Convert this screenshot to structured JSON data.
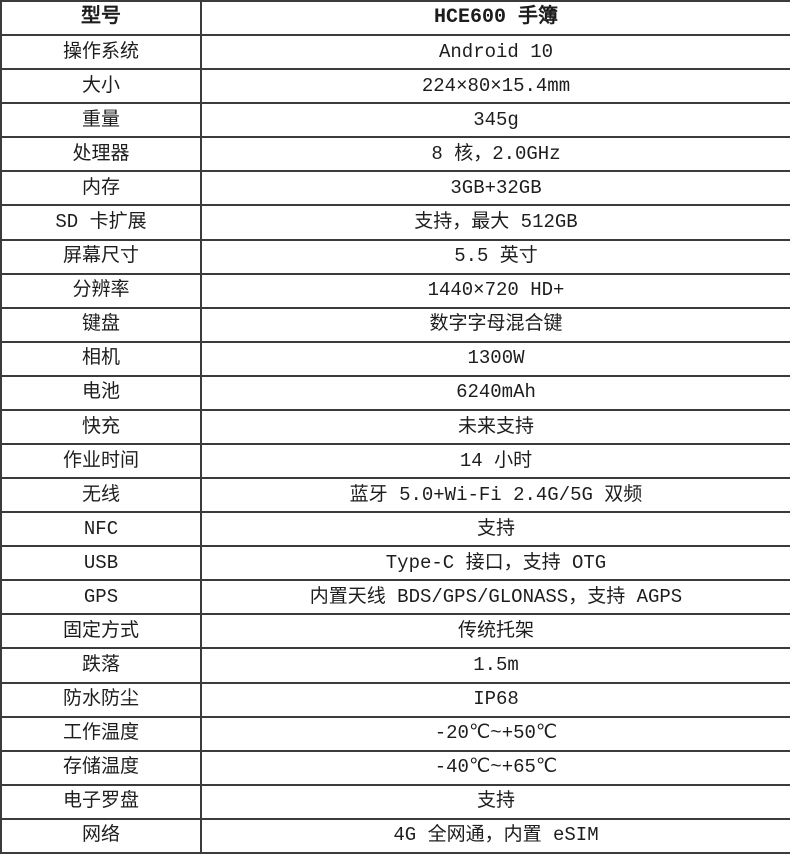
{
  "table": {
    "header": {
      "label": "型号",
      "value": "HCE600 手簿"
    },
    "rows": [
      {
        "label": "操作系统",
        "value": "Android 10"
      },
      {
        "label": "大小",
        "value": "224×80×15.4mm"
      },
      {
        "label": "重量",
        "value": "345g"
      },
      {
        "label": "处理器",
        "value": "8 核，2.0GHz"
      },
      {
        "label": "内存",
        "value": "3GB+32GB"
      },
      {
        "label": "SD 卡扩展",
        "value": "支持，最大 512GB"
      },
      {
        "label": "屏幕尺寸",
        "value": "5.5 英寸"
      },
      {
        "label": "分辨率",
        "value": "1440×720 HD+"
      },
      {
        "label": "键盘",
        "value": "数字字母混合键"
      },
      {
        "label": "相机",
        "value": "1300W"
      },
      {
        "label": "电池",
        "value": "6240mAh"
      },
      {
        "label": "快充",
        "value": "未来支持"
      },
      {
        "label": "作业时间",
        "value": "14 小时"
      },
      {
        "label": "无线",
        "value": "蓝牙 5.0+Wi-Fi 2.4G/5G 双频"
      },
      {
        "label": "NFC",
        "value": "支持"
      },
      {
        "label": "USB",
        "value": "Type-C 接口，支持 OTG"
      },
      {
        "label": "GPS",
        "value": "内置天线 BDS/GPS/GLONASS，支持 AGPS"
      },
      {
        "label": "固定方式",
        "value": "传统托架"
      },
      {
        "label": "跌落",
        "value": "1.5m"
      },
      {
        "label": "防水防尘",
        "value": "IP68"
      },
      {
        "label": "工作温度",
        "value": "-20℃~+50℃"
      },
      {
        "label": "存储温度",
        "value": "-40℃~+65℃"
      },
      {
        "label": "电子罗盘",
        "value": "支持"
      },
      {
        "label": "网络",
        "value": "4G 全网通，内置 eSIM"
      }
    ]
  },
  "colors": {
    "border": "#3b3b3b",
    "text": "#1d1d1d",
    "background": "#ffffff"
  }
}
